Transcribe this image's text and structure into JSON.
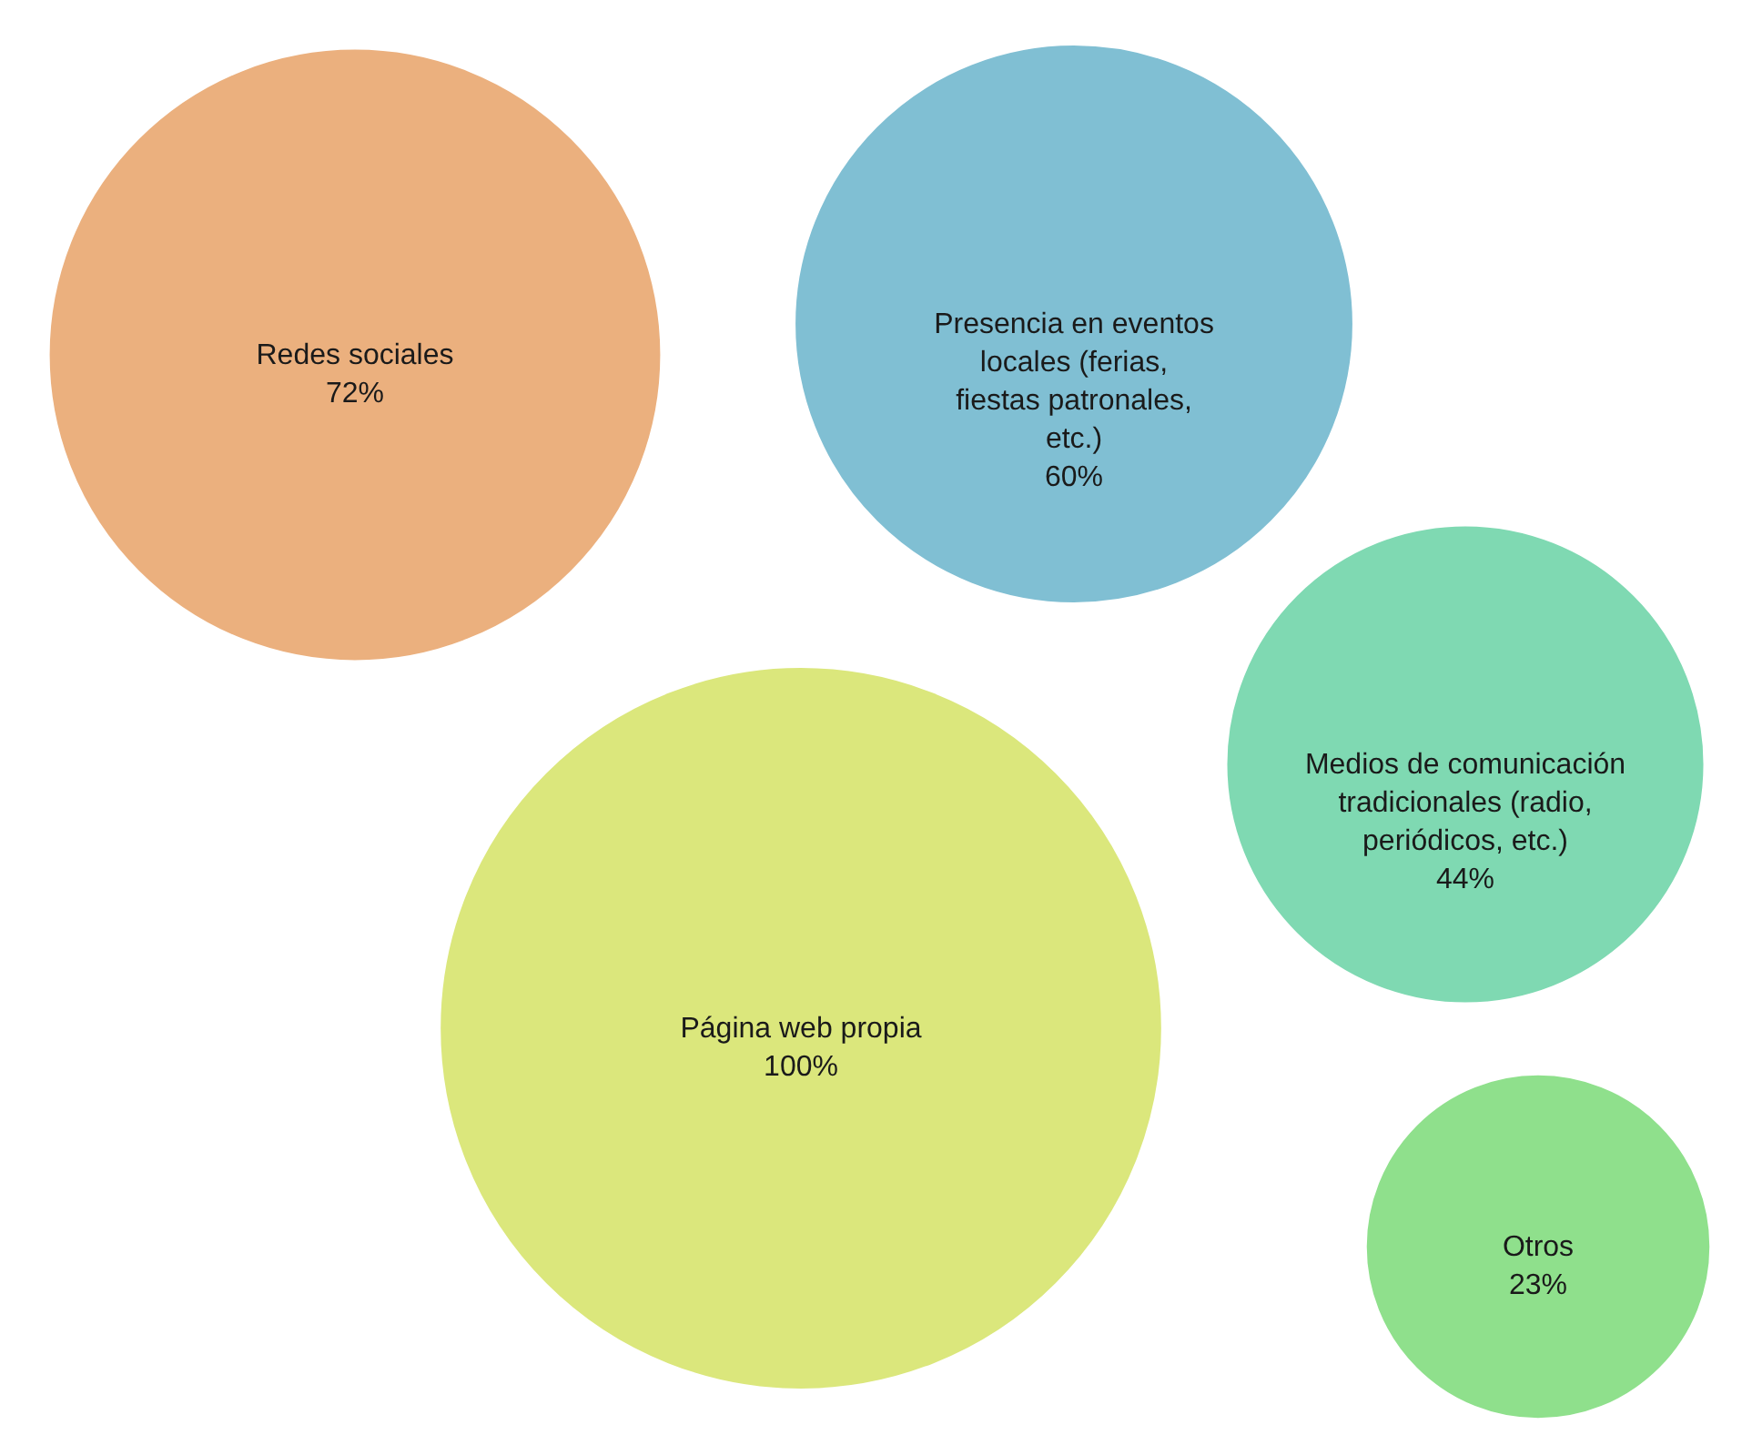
{
  "chart_data": {
    "type": "other",
    "categories": [
      "Redes sociales",
      "Presencia en eventos locales (ferias, fiestas patronales, etc.)",
      "Página web propia",
      "Medios de comunicación tradicionales (radio, periódicos, etc.)",
      "Otros"
    ],
    "values": [
      72,
      60,
      100,
      44,
      23
    ],
    "value_labels": [
      "72%",
      "60%",
      "100%",
      "44%",
      "23%"
    ],
    "colors": [
      "#ebb07e",
      "#80bfd3",
      "#dbe77c",
      "#7fd9b2",
      "#8fe08c"
    ]
  }
}
